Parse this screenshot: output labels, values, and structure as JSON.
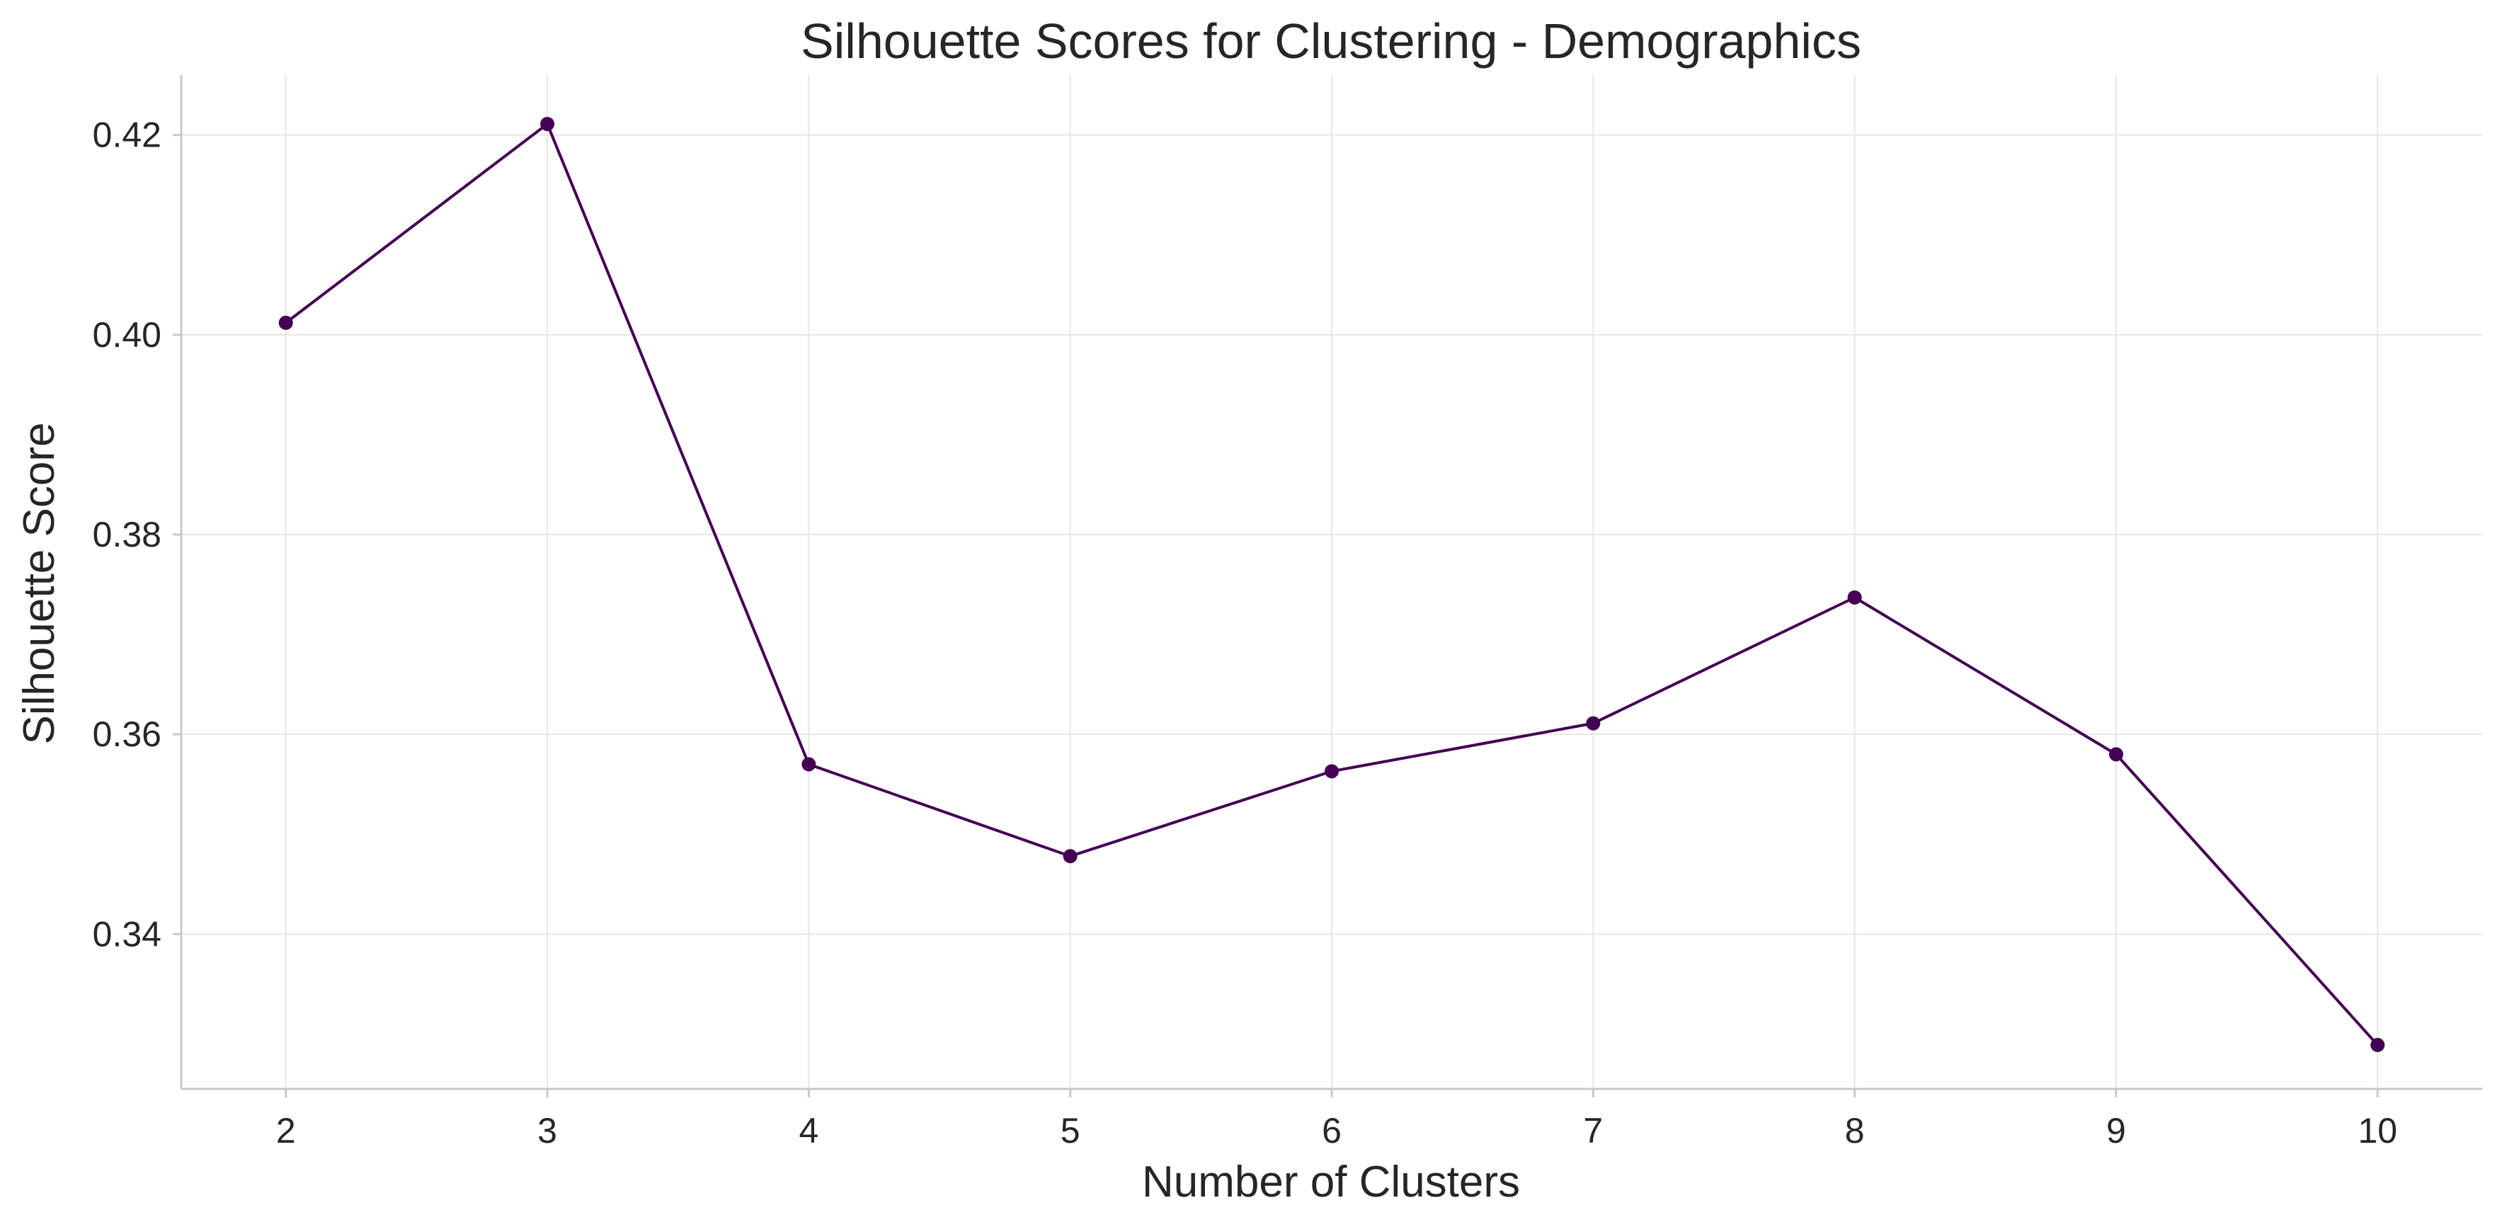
{
  "chart_data": {
    "type": "line",
    "title": "Silhouette Scores for Clustering - Demographics",
    "xlabel": "Number of Clusters",
    "ylabel": "Silhouette Score",
    "x": [
      2,
      3,
      4,
      5,
      6,
      7,
      8,
      9,
      10
    ],
    "series": [
      {
        "values": [
          0.4012,
          0.4211,
          0.357,
          0.3478,
          0.3563,
          0.3611,
          0.3737,
          0.358,
          0.3289
        ]
      }
    ],
    "xlim": [
      1.6,
      10.4
    ],
    "ylim": [
      0.3245,
      0.426
    ],
    "xticks": [
      "2",
      "3",
      "4",
      "5",
      "6",
      "7",
      "8",
      "9",
      "10"
    ],
    "yticks": [
      {
        "value": 0.34,
        "label": "0.34"
      },
      {
        "value": 0.36,
        "label": "0.36"
      },
      {
        "value": 0.38,
        "label": "0.38"
      },
      {
        "value": 0.4,
        "label": "0.40"
      },
      {
        "value": 0.42,
        "label": "0.42"
      }
    ],
    "grid": true,
    "line_color": "#440154",
    "marker": "circle"
  }
}
